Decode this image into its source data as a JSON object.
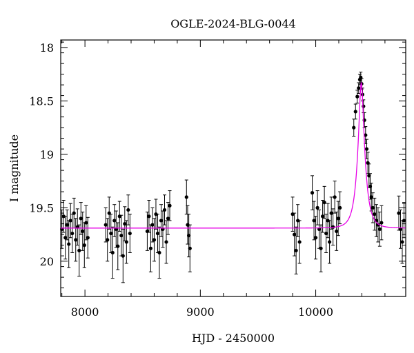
{
  "chart_data": {
    "type": "scatter",
    "title": "OGLE-2024-BLG-0044",
    "xlabel": "HJD - 2450000",
    "ylabel": "I magnitude",
    "xlim": [
      7790,
      10780
    ],
    "ylim": [
      20.33,
      17.93
    ],
    "y_inverted": true,
    "grid": false,
    "x_ticks": [
      8000,
      9000,
      10000
    ],
    "y_ticks": [
      18,
      18.5,
      19,
      19.5,
      20
    ],
    "y_tick_labels": [
      "18",
      "18.5",
      "19",
      "19.5",
      "20"
    ],
    "colors": {
      "data": "#000000",
      "model": "#e600e6",
      "frame": "#000000"
    },
    "model": {
      "name": "",
      "baseline_mag": 19.69,
      "peak_time": 10395,
      "peak_mag": 18.33,
      "timescale_days": 62
    },
    "series": [
      {
        "name": "",
        "points": [
          [
            7800,
            19.7,
            0.18
          ],
          [
            7815,
            19.58,
            0.15
          ],
          [
            7830,
            19.78,
            0.2
          ],
          [
            7845,
            19.66,
            0.14
          ],
          [
            7860,
            19.84,
            0.22
          ],
          [
            7875,
            19.62,
            0.16
          ],
          [
            7890,
            19.74,
            0.18
          ],
          [
            7905,
            19.55,
            0.14
          ],
          [
            7920,
            19.8,
            0.2
          ],
          [
            7935,
            19.68,
            0.17
          ],
          [
            7950,
            19.9,
            0.24
          ],
          [
            7965,
            19.6,
            0.15
          ],
          [
            7980,
            19.72,
            0.18
          ],
          [
            7995,
            19.85,
            0.21
          ],
          [
            8010,
            19.64,
            0.16
          ],
          [
            8025,
            19.78,
            0.19
          ],
          [
            8180,
            19.66,
            0.16
          ],
          [
            8195,
            19.8,
            0.2
          ],
          [
            8210,
            19.55,
            0.15
          ],
          [
            8225,
            19.74,
            0.18
          ],
          [
            8240,
            19.92,
            0.24
          ],
          [
            8255,
            19.62,
            0.15
          ],
          [
            8270,
            19.7,
            0.17
          ],
          [
            8285,
            19.86,
            0.22
          ],
          [
            8300,
            19.58,
            0.14
          ],
          [
            8315,
            19.76,
            0.19
          ],
          [
            8330,
            19.95,
            0.25
          ],
          [
            8345,
            19.65,
            0.16
          ],
          [
            8360,
            19.82,
            0.2
          ],
          [
            8375,
            19.52,
            0.14
          ],
          [
            8390,
            19.74,
            0.18
          ],
          [
            8540,
            19.72,
            0.18
          ],
          [
            8555,
            19.58,
            0.15
          ],
          [
            8570,
            19.88,
            0.22
          ],
          [
            8585,
            19.66,
            0.16
          ],
          [
            8600,
            19.8,
            0.2
          ],
          [
            8615,
            19.56,
            0.14
          ],
          [
            8630,
            19.74,
            0.18
          ],
          [
            8645,
            19.92,
            0.24
          ],
          [
            8660,
            19.62,
            0.15
          ],
          [
            8675,
            19.7,
            0.17
          ],
          [
            8690,
            19.52,
            0.14
          ],
          [
            8705,
            19.82,
            0.2
          ],
          [
            8720,
            19.6,
            0.15
          ],
          [
            8735,
            19.48,
            0.14
          ],
          [
            8880,
            19.4,
            0.16
          ],
          [
            8890,
            19.66,
            0.18
          ],
          [
            8900,
            19.76,
            0.2
          ],
          [
            8910,
            19.88,
            0.22
          ],
          [
            9800,
            19.56,
            0.16
          ],
          [
            9815,
            19.75,
            0.2
          ],
          [
            9830,
            19.9,
            0.22
          ],
          [
            9845,
            19.62,
            0.15
          ],
          [
            9860,
            19.82,
            0.2
          ],
          [
            9970,
            19.36,
            0.16
          ],
          [
            9985,
            19.62,
            0.18
          ],
          [
            10000,
            19.78,
            0.2
          ],
          [
            10015,
            19.5,
            0.16
          ],
          [
            10030,
            19.7,
            0.18
          ],
          [
            10045,
            19.88,
            0.22
          ],
          [
            10060,
            19.58,
            0.15
          ],
          [
            10075,
            19.45,
            0.15
          ],
          [
            10090,
            19.74,
            0.18
          ],
          [
            10105,
            19.62,
            0.16
          ],
          [
            10120,
            19.82,
            0.2
          ],
          [
            10135,
            19.55,
            0.15
          ],
          [
            10150,
            19.68,
            0.17
          ],
          [
            10165,
            19.4,
            0.15
          ],
          [
            10180,
            19.72,
            0.18
          ],
          [
            10195,
            19.6,
            0.16
          ],
          [
            10210,
            19.5,
            0.15
          ],
          [
            10330,
            18.75,
            0.08
          ],
          [
            10345,
            18.6,
            0.07
          ],
          [
            10360,
            18.46,
            0.06
          ],
          [
            10372,
            18.38,
            0.05
          ],
          [
            10382,
            18.3,
            0.05
          ],
          [
            10390,
            18.28,
            0.05
          ],
          [
            10398,
            18.34,
            0.05
          ],
          [
            10406,
            18.44,
            0.06
          ],
          [
            10414,
            18.55,
            0.06
          ],
          [
            10422,
            18.68,
            0.07
          ],
          [
            10432,
            18.82,
            0.08
          ],
          [
            10442,
            18.95,
            0.09
          ],
          [
            10452,
            19.08,
            0.1
          ],
          [
            10462,
            19.2,
            0.11
          ],
          [
            10472,
            19.3,
            0.12
          ],
          [
            10482,
            19.4,
            0.13
          ],
          [
            10495,
            19.5,
            0.14
          ],
          [
            10510,
            19.56,
            0.15
          ],
          [
            10525,
            19.62,
            0.15
          ],
          [
            10540,
            19.66,
            0.16
          ],
          [
            10555,
            19.7,
            0.16
          ],
          [
            10570,
            19.64,
            0.16
          ],
          [
            10720,
            19.55,
            0.16
          ],
          [
            10735,
            19.7,
            0.18
          ],
          [
            10750,
            19.82,
            0.2
          ],
          [
            10765,
            19.62,
            0.16
          ]
        ]
      }
    ]
  }
}
